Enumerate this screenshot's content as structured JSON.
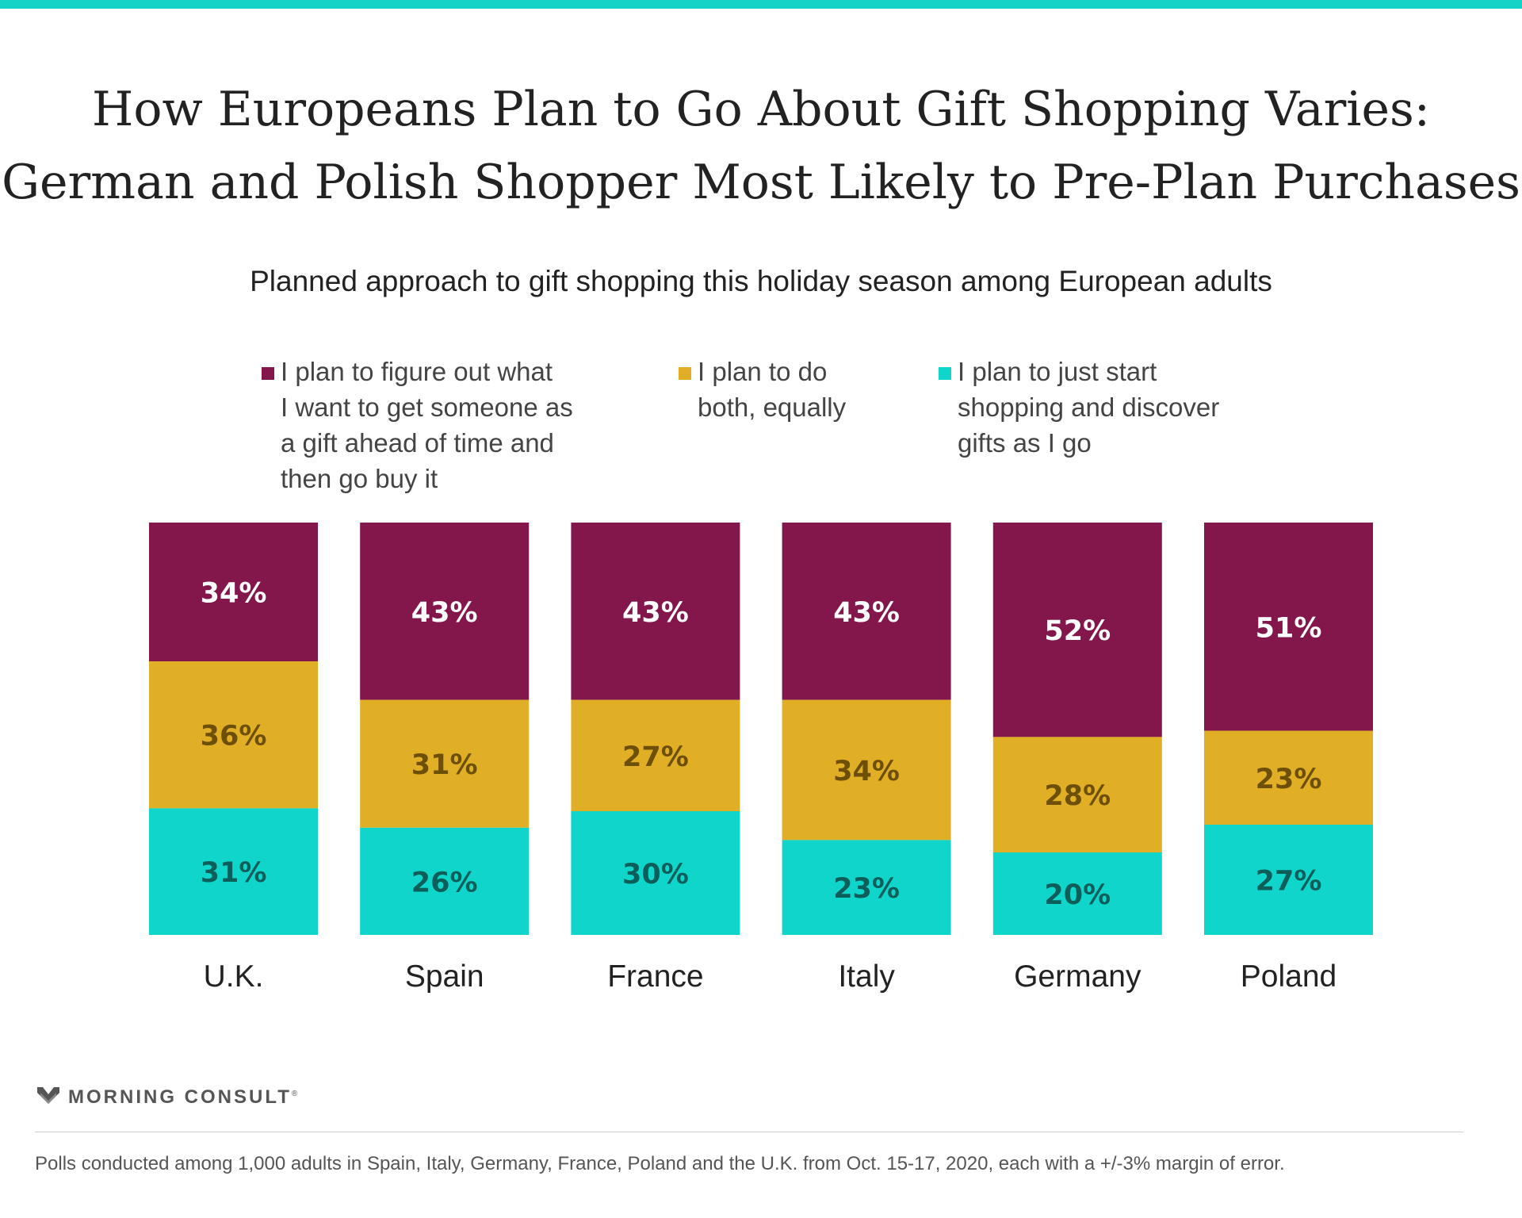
{
  "colors": {
    "accent_bar": "#14d4c8",
    "plan_ahead": "#83174c",
    "both": "#e1af25",
    "discover": "#10d5ca",
    "label_dark_gold": "#6d4f08",
    "label_dark_teal": "#0c5e5a"
  },
  "header": {
    "title_line1": "How Europeans Plan to Go About Gift Shopping Varies:",
    "title_line2": "German and Polish Shopper Most Likely to Pre-Plan Purchases",
    "subtitle": "Planned approach to gift shopping this holiday season among European adults"
  },
  "legend": [
    {
      "lines": [
        "I plan to figure out what",
        "I want to get someone as",
        "a gift ahead of time and",
        "then go buy it"
      ],
      "color": "#83174c"
    },
    {
      "lines": [
        "I plan to do",
        "both, equally"
      ],
      "color": "#e1af25"
    },
    {
      "lines": [
        "I plan to just start",
        "shopping and discover",
        "gifts as I go"
      ],
      "color": "#10d5ca"
    }
  ],
  "chart_data": {
    "type": "bar",
    "stacked": true,
    "categories": [
      "U.K.",
      "Spain",
      "France",
      "Italy",
      "Germany",
      "Poland"
    ],
    "series": [
      {
        "name": "I plan to figure out what I want to get someone as a gift ahead of time and then go buy it",
        "values": [
          34,
          43,
          43,
          43,
          52,
          51
        ],
        "color": "#83174c",
        "label_color": "#ffffff"
      },
      {
        "name": "I plan to do both, equally",
        "values": [
          36,
          31,
          27,
          34,
          28,
          23
        ],
        "color": "#e1af25",
        "label_color": "#6d4f08"
      },
      {
        "name": "I plan to just start shopping and discover gifts as I go",
        "values": [
          31,
          26,
          30,
          23,
          20,
          27
        ],
        "color": "#10d5ca",
        "label_color": "#0c5e5a"
      }
    ],
    "value_suffix": "%"
  },
  "footer": {
    "brand": "MORNING CONSULT",
    "trademark": "®",
    "note": "Polls conducted among 1,000 adults in Spain, Italy, Germany, France, Poland and the U.K. from Oct. 15-17, 2020, each with a +/-3% margin of error."
  }
}
